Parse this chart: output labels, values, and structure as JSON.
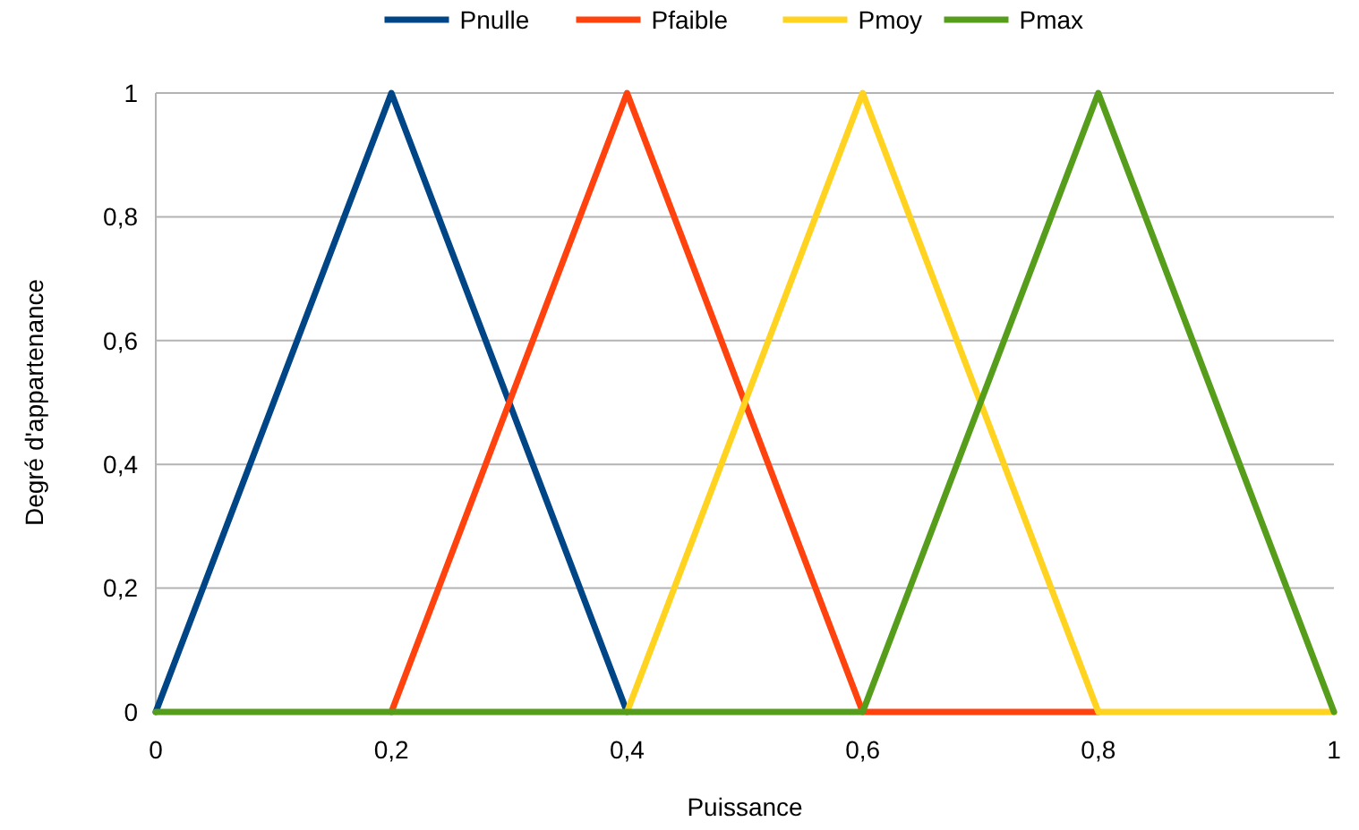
{
  "chart_data": {
    "type": "line",
    "xlabel": "Puissance",
    "ylabel": "Degré d'appartenance",
    "series": [
      {
        "name": "Pnulle",
        "color": "#004586",
        "x": [
          0,
          0.2,
          0.4
        ],
        "values": [
          0,
          1,
          0
        ]
      },
      {
        "name": "Pfaible",
        "color": "#ff420e",
        "x": [
          0.2,
          0.4,
          0.6,
          0.8
        ],
        "values": [
          0,
          1,
          0,
          0
        ]
      },
      {
        "name": "Pmoy",
        "color": "#ffd320",
        "x": [
          0.4,
          0.6,
          0.8,
          1
        ],
        "values": [
          0,
          1,
          0,
          0
        ]
      },
      {
        "name": "Pmax",
        "color": "#579d1c",
        "x": [
          0,
          0.6,
          0.8,
          1
        ],
        "values": [
          0,
          0,
          1,
          0
        ]
      }
    ],
    "xlim": [
      0,
      1
    ],
    "ylim": [
      0,
      1
    ],
    "xticks": [
      0,
      {
        "value": 0.2,
        "label": "0,2"
      },
      {
        "value": 0.4,
        "label": "0,4"
      },
      {
        "value": 0.6,
        "label": "0,6"
      },
      {
        "value": 0.8,
        "label": "0,8"
      },
      1
    ],
    "yticks": [
      0,
      {
        "value": 0.2,
        "label": "0,2"
      },
      {
        "value": 0.4,
        "label": "0,4"
      },
      {
        "value": 0.6,
        "label": "0,6"
      },
      {
        "value": 0.8,
        "label": "0,8"
      },
      1
    ],
    "grid": "y",
    "legend": "top",
    "marker": "none",
    "line_style": "solid"
  }
}
